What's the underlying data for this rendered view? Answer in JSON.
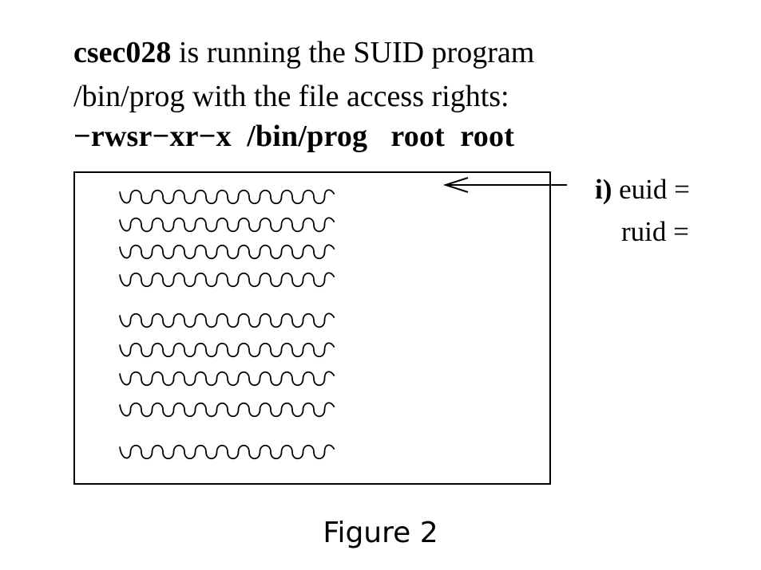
{
  "intro": {
    "user": "csec028",
    "line1_rest": " is running the SUID program",
    "line2": "/bin/prog with the file access rights:",
    "permissions": "−rwsr−xr−x",
    "path": "/bin/prog",
    "owner": "root",
    "group": "root"
  },
  "annotation": {
    "marker": "i)",
    "euid_label": " euid =",
    "ruid_label": "ruid ="
  },
  "code_block": {
    "line_count": 9
  },
  "caption": "Figure 2"
}
